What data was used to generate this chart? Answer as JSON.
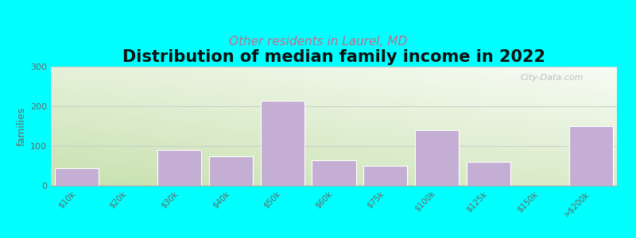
{
  "title": "Distribution of median family income in 2022",
  "subtitle": "Other residents in Laurel, MD",
  "categories": [
    "$10k",
    "$20k",
    "$30k",
    "$40k",
    "$50k",
    "$60k",
    "$75k",
    "$100k",
    "$125k",
    "$150k",
    ">$200k"
  ],
  "values": [
    45,
    0,
    90,
    75,
    215,
    65,
    50,
    140,
    60,
    0,
    150
  ],
  "bar_color": "#c4aed4",
  "bar_edge_color": "#ffffff",
  "ylabel": "families",
  "ylim": [
    0,
    300
  ],
  "yticks": [
    0,
    100,
    200,
    300
  ],
  "background_outer": "#00FFFF",
  "title_fontsize": 15,
  "title_fontweight": "bold",
  "subtitle_fontsize": 11,
  "subtitle_color": "#cc6688",
  "watermark": "City-Data.com",
  "grid_color": "#cccccc",
  "tick_color": "#666666",
  "bg_colors": [
    "#c8ddb0",
    "#f0f5e8",
    "#f8faf5",
    "#f8faf5"
  ],
  "bar_width": 0.85
}
